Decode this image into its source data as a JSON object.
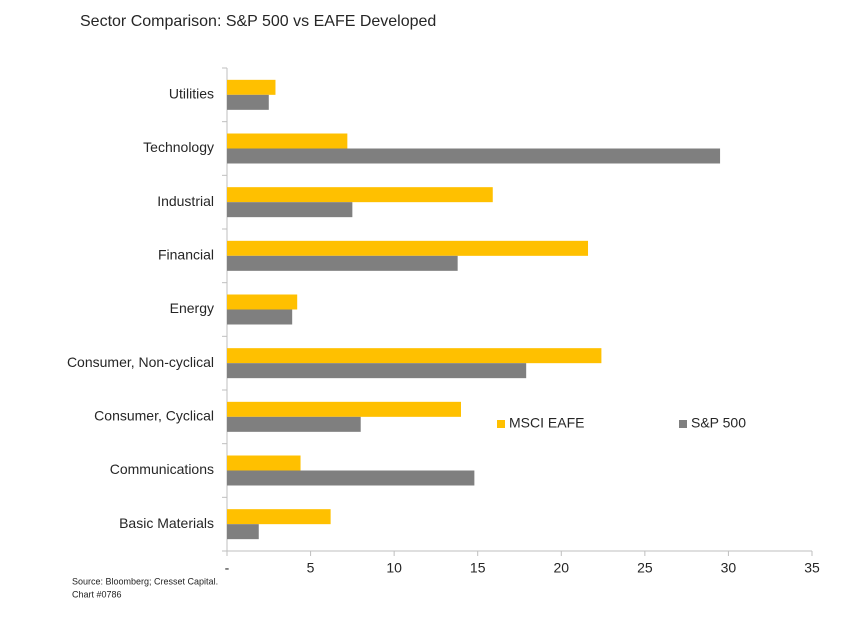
{
  "chart_data": {
    "type": "bar",
    "orientation": "horizontal",
    "title": "Sector Comparison: S&P 500 vs EAFE Developed",
    "source": [
      "Source: Bloomberg; Cresset Capital.",
      "Chart #0786"
    ],
    "categories": [
      "Utilities",
      "Technology",
      "Industrial",
      "Financial",
      "Energy",
      "Consumer, Non-cyclical",
      "Consumer, Cyclical",
      "Communications",
      "Basic Materials"
    ],
    "series": [
      {
        "name": "MSCI EAFE",
        "color": "#FFC000",
        "values": [
          2.9,
          7.2,
          15.9,
          21.6,
          4.2,
          22.4,
          14.0,
          4.4,
          6.2
        ]
      },
      {
        "name": "S&P 500",
        "color": "#7F7F7F",
        "values": [
          2.5,
          29.5,
          7.5,
          13.8,
          3.9,
          17.9,
          8.0,
          14.8,
          1.9
        ]
      }
    ],
    "xlim": [
      0,
      35
    ],
    "xticks": [
      {
        "value": 0,
        "label": "-"
      },
      5,
      10,
      15,
      20,
      25,
      30,
      35
    ],
    "grid": false
  }
}
